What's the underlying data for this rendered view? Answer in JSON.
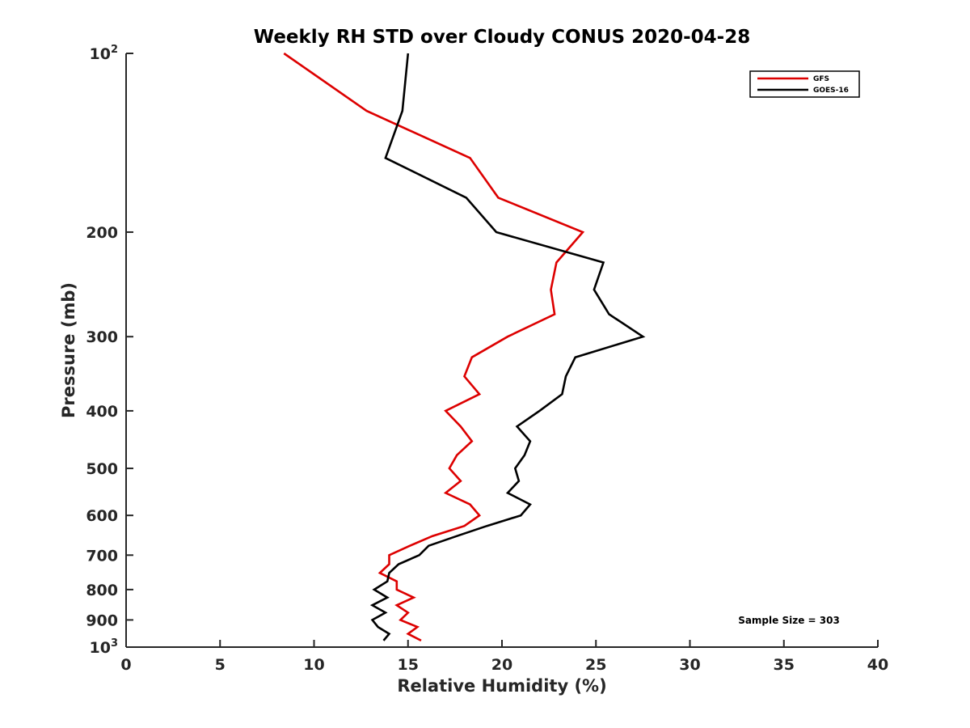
{
  "chart_data": {
    "type": "line",
    "title": "Weekly RH STD over Cloudy CONUS 2020-04-28",
    "xlabel": "Relative Humidity (%)",
    "ylabel": "Pressure (mb)",
    "xlim": [
      0,
      40
    ],
    "ylim": [
      100,
      1000
    ],
    "yscale": "log",
    "y_reversed": true,
    "grid": false,
    "legend_position": "top-right",
    "x_ticks": [
      "0",
      "5",
      "10",
      "15",
      "20",
      "25",
      "30",
      "35",
      "40"
    ],
    "x_tick_values": [
      0,
      5,
      10,
      15,
      20,
      25,
      30,
      35,
      40
    ],
    "y_ticks": [
      {
        "value": 100,
        "label": "10",
        "sup": "2"
      },
      {
        "value": 200,
        "label": "200",
        "sup": ""
      },
      {
        "value": 300,
        "label": "300",
        "sup": ""
      },
      {
        "value": 400,
        "label": "400",
        "sup": ""
      },
      {
        "value": 500,
        "label": "500",
        "sup": ""
      },
      {
        "value": 600,
        "label": "600",
        "sup": ""
      },
      {
        "value": 700,
        "label": "700",
        "sup": ""
      },
      {
        "value": 800,
        "label": "800",
        "sup": ""
      },
      {
        "value": 900,
        "label": "900",
        "sup": ""
      },
      {
        "value": 1000,
        "label": "10",
        "sup": "3"
      }
    ],
    "annotation": "Sample Size = 303",
    "series": [
      {
        "name": "GFS",
        "color": "#dd0000",
        "points": [
          [
            8.4,
            100
          ],
          [
            12.8,
            125
          ],
          [
            18.3,
            150
          ],
          [
            19.8,
            175
          ],
          [
            24.3,
            200
          ],
          [
            22.9,
            225
          ],
          [
            22.6,
            250
          ],
          [
            22.8,
            275
          ],
          [
            20.3,
            300
          ],
          [
            18.4,
            325
          ],
          [
            18.0,
            350
          ],
          [
            18.8,
            375
          ],
          [
            17.0,
            400
          ],
          [
            17.8,
            425
          ],
          [
            18.4,
            450
          ],
          [
            17.6,
            475
          ],
          [
            17.2,
            500
          ],
          [
            17.8,
            525
          ],
          [
            17.0,
            550
          ],
          [
            18.3,
            575
          ],
          [
            18.8,
            600
          ],
          [
            18.0,
            625
          ],
          [
            16.3,
            650
          ],
          [
            15.1,
            675
          ],
          [
            14.0,
            700
          ],
          [
            14.0,
            725
          ],
          [
            13.5,
            750
          ],
          [
            14.4,
            775
          ],
          [
            14.4,
            800
          ],
          [
            15.3,
            825
          ],
          [
            14.4,
            850
          ],
          [
            15.0,
            875
          ],
          [
            14.6,
            900
          ],
          [
            15.5,
            925
          ],
          [
            15.0,
            950
          ],
          [
            15.7,
            975
          ]
        ]
      },
      {
        "name": "GOES-16",
        "color": "#000000",
        "points": [
          [
            15.0,
            100
          ],
          [
            14.7,
            125
          ],
          [
            13.8,
            150
          ],
          [
            18.1,
            175
          ],
          [
            19.7,
            200
          ],
          [
            25.4,
            225
          ],
          [
            24.9,
            250
          ],
          [
            25.7,
            275
          ],
          [
            27.5,
            300
          ],
          [
            23.9,
            325
          ],
          [
            23.4,
            350
          ],
          [
            23.2,
            375
          ],
          [
            22.0,
            400
          ],
          [
            20.8,
            425
          ],
          [
            21.5,
            450
          ],
          [
            21.2,
            475
          ],
          [
            20.7,
            500
          ],
          [
            20.9,
            525
          ],
          [
            20.3,
            550
          ],
          [
            21.5,
            575
          ],
          [
            21.0,
            600
          ],
          [
            19.2,
            625
          ],
          [
            17.6,
            650
          ],
          [
            16.1,
            675
          ],
          [
            15.6,
            700
          ],
          [
            14.5,
            725
          ],
          [
            14.0,
            750
          ],
          [
            13.9,
            775
          ],
          [
            13.2,
            800
          ],
          [
            13.9,
            825
          ],
          [
            13.1,
            850
          ],
          [
            13.8,
            875
          ],
          [
            13.1,
            900
          ],
          [
            13.4,
            925
          ],
          [
            14.0,
            950
          ],
          [
            13.7,
            975
          ]
        ]
      }
    ]
  }
}
